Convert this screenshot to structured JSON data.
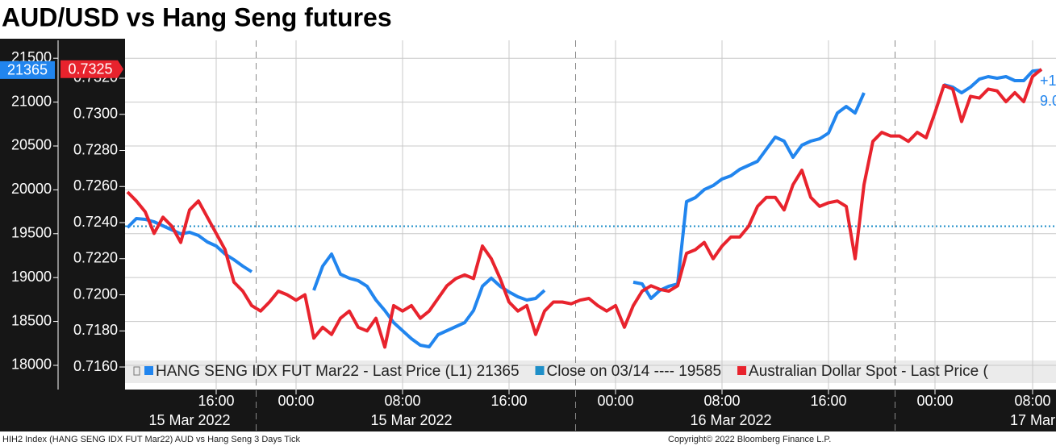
{
  "chart_data": {
    "type": "line",
    "title": "AUD/USD vs Hang Seng futures",
    "footer_left": "HIH2 Index (HANG SENG IDX FUT Mar22) AUD vs Hang Seng 3 Days  Tick",
    "footer_right": "Copyright© 2022 Bloomberg Finance L.P.",
    "categories": [
      null,
      null,
      null,
      null,
      null,
      null,
      null,
      null,
      null,
      null,
      "16:00",
      null,
      null,
      null,
      null,
      null,
      null,
      null,
      null,
      "00:00",
      null,
      null,
      null,
      null,
      null,
      null,
      null,
      null,
      null,
      null,
      null,
      "08:00",
      null,
      null,
      null,
      null,
      null,
      null,
      null,
      null,
      null,
      null,
      null,
      "16:00",
      null,
      null,
      null,
      null,
      null,
      null,
      null,
      null,
      null,
      null,
      null,
      "00:00",
      null,
      null,
      null,
      null,
      null,
      null,
      null,
      null,
      null,
      null,
      null,
      "08:00",
      null,
      null,
      null,
      null,
      null,
      null,
      null,
      null,
      null,
      null,
      null,
      "16:00",
      null,
      null,
      null,
      null,
      null,
      null,
      null,
      null,
      null,
      null,
      null,
      "00:00",
      null,
      null,
      null,
      null,
      null,
      null,
      null,
      null,
      null,
      null,
      "08:00",
      null
    ],
    "category_dates": [
      null,
      null,
      null,
      null,
      null,
      null,
      null,
      "15 Mar 2022",
      null,
      null,
      null,
      null,
      null,
      null,
      null,
      null,
      null,
      null,
      null,
      null,
      null,
      null,
      null,
      null,
      null,
      null,
      null,
      null,
      null,
      null,
      null,
      null,
      "15 Mar 2022",
      null,
      null,
      null,
      null,
      null,
      null,
      null,
      null,
      null,
      null,
      null,
      null,
      null,
      null,
      null,
      null,
      null,
      null,
      null,
      null,
      null,
      null,
      null,
      null,
      null,
      null,
      null,
      null,
      null,
      null,
      null,
      null,
      null,
      null,
      null,
      "16 Mar 2022",
      null,
      null,
      null,
      null,
      null,
      null,
      null,
      null,
      null,
      null,
      null,
      null,
      null,
      null,
      null,
      null,
      null,
      null,
      null,
      null,
      null,
      null,
      null,
      null,
      null,
      null,
      null,
      null,
      null,
      null,
      null,
      null,
      null,
      "17 Mar"
    ],
    "ylim": [
      17724,
      21704
    ],
    "yticks": [
      18000,
      18500,
      19000,
      19500,
      20000,
      20500,
      21000,
      21500
    ],
    "y2lim": [
      0.71475,
      0.7341
    ],
    "y2ticks": [
      {
        "value": 0.716,
        "label": "0.7160"
      },
      {
        "value": 0.718,
        "label": "0.7180"
      },
      {
        "value": 0.72,
        "label": "0.7200"
      },
      {
        "value": 0.722,
        "label": "0.7220"
      },
      {
        "value": 0.724,
        "label": "0.7240"
      },
      {
        "value": 0.726,
        "label": "0.7260"
      },
      {
        "value": 0.728,
        "label": "0.7280"
      },
      {
        "value": 0.73,
        "label": "0.7300"
      },
      {
        "value": 0.732,
        "label": "0.7320"
      }
    ],
    "grid": true,
    "series": [
      {
        "name": "HANG SENG IDX FUT Mar22 - Last Price (L1) 21365",
        "color": "#2185ee",
        "last_value": 21365,
        "values": [
          19571,
          19673,
          19663,
          19636,
          19590,
          19544,
          19498,
          19516,
          19480,
          19406,
          19360,
          19268,
          19204,
          19130,
          19066,
          null,
          null,
          null,
          null,
          null,
          null,
          18855,
          19130,
          19268,
          19038,
          18993,
          18965,
          18901,
          18744,
          18625,
          18487,
          18395,
          18303,
          18230,
          18211,
          18349,
          18395,
          18441,
          18487,
          18625,
          18901,
          18993,
          18901,
          18836,
          18781,
          18744,
          18763,
          18855,
          null,
          null,
          null,
          null,
          null,
          null,
          null,
          null,
          null,
          18947,
          18928,
          18763,
          18855,
          18901,
          18928,
          19866,
          19912,
          20003,
          20049,
          20123,
          20160,
          20233,
          20279,
          20325,
          20463,
          20601,
          20555,
          20371,
          20509,
          20555,
          20582,
          20647,
          20876,
          20950,
          20876,
          21106,
          null,
          null,
          null,
          null,
          null,
          null,
          null,
          null,
          21198,
          21171,
          21106,
          21171,
          21262,
          21290,
          21272,
          21290,
          21244,
          21244,
          21354,
          21365
        ]
      },
      {
        "name": "Australian Dollar Spot - Last Price (",
        "color": "#e8232d",
        "axis": "y2",
        "last_value": 0.7325,
        "last_value_label": "0.7325",
        "values": [
          0.7257,
          0.7252,
          0.7246,
          0.7234,
          0.7243,
          0.7238,
          0.7229,
          0.7247,
          0.7252,
          0.7243,
          0.7234,
          0.7225,
          0.7207,
          0.7202,
          0.7194,
          0.7191,
          0.7196,
          0.7202,
          0.72,
          0.7197,
          0.72,
          0.7176,
          0.7182,
          0.7178,
          0.7187,
          0.7191,
          0.7182,
          0.718,
          0.7187,
          0.7171,
          0.7194,
          0.7191,
          0.7194,
          0.7187,
          0.7191,
          0.7198,
          0.7205,
          0.7209,
          0.7211,
          0.7209,
          0.7227,
          0.722,
          0.7209,
          0.7196,
          0.7191,
          0.7194,
          0.7178,
          0.7191,
          0.7196,
          0.7196,
          0.7195,
          0.7197,
          0.7198,
          0.7194,
          0.7191,
          0.7194,
          0.7182,
          0.7194,
          0.7202,
          0.7205,
          0.7203,
          0.7202,
          0.7205,
          0.7223,
          0.7225,
          0.7229,
          0.722,
          0.7227,
          0.7232,
          0.7232,
          0.7238,
          0.7249,
          0.7254,
          0.7254,
          0.7247,
          0.7261,
          0.7269,
          0.7254,
          0.7249,
          0.7251,
          0.7252,
          0.7249,
          0.722,
          0.7261,
          0.7285,
          0.729,
          0.7288,
          0.7288,
          0.7285,
          0.729,
          0.7287,
          0.7301,
          0.7316,
          0.7314,
          0.7296,
          0.731,
          0.7309,
          0.7314,
          0.7313,
          0.7307,
          0.7312,
          0.7307,
          0.7321,
          0.7325
        ]
      }
    ],
    "reference_line": {
      "name": "Close on 03/14 ---- 19585",
      "value": 19585,
      "color": "#1f8fc8"
    },
    "annotations": [
      {
        "text": "+1",
        "color": "#2185ee"
      },
      {
        "text": "9.0",
        "color": "#2185ee"
      }
    ]
  }
}
